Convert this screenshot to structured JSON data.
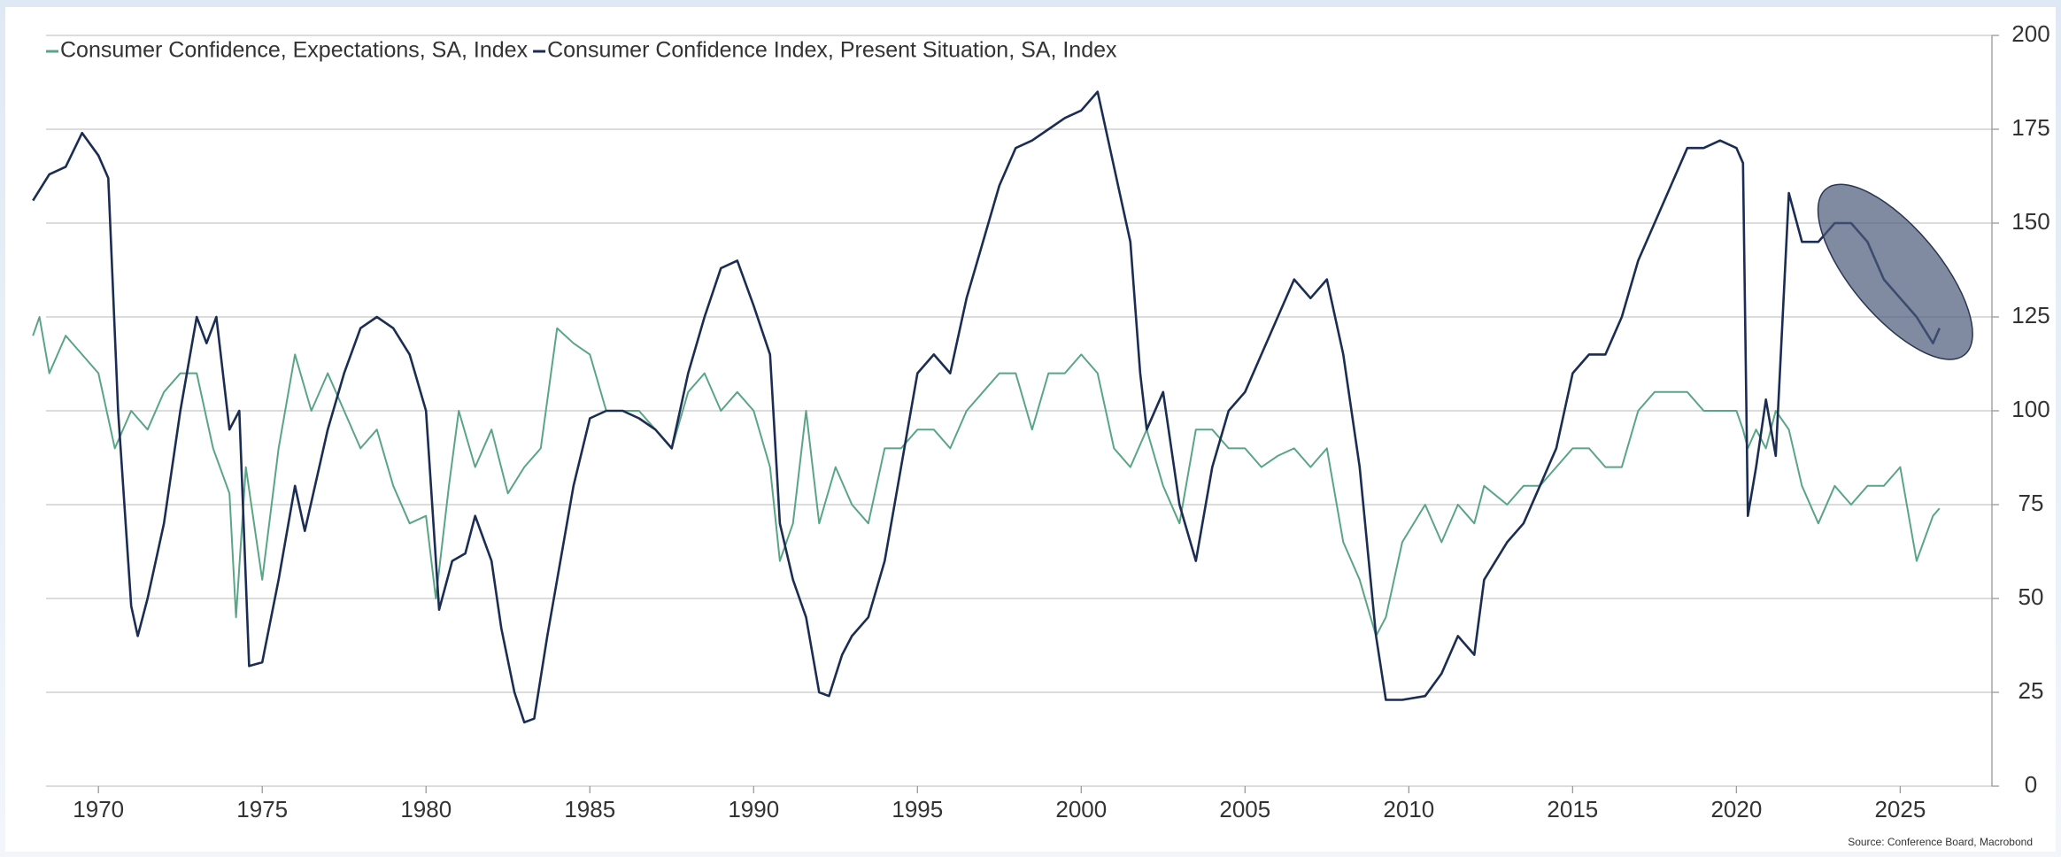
{
  "chart_data": {
    "type": "line",
    "legend": "top-left",
    "grid": true,
    "xlim": [
      1968.4,
      2027.8
    ],
    "xticks": [
      1970,
      1975,
      1980,
      1985,
      1990,
      1995,
      2000,
      2005,
      2010,
      2015,
      2020,
      2025
    ],
    "ylim": [
      0,
      200
    ],
    "yticks": [
      0,
      25,
      50,
      75,
      100,
      125,
      150,
      175,
      200
    ],
    "source": "Source: Conference Board, Macrobond",
    "series": [
      {
        "name": "Consumer Confidence, Expectations, SA, Index",
        "color": "#5aa586",
        "x": [
          1968.0,
          1968.2,
          1968.5,
          1969.0,
          1969.5,
          1970.0,
          1970.5,
          1971.0,
          1971.5,
          1972.0,
          1972.5,
          1973.0,
          1973.5,
          1974.0,
          1974.2,
          1974.5,
          1975.0,
          1975.5,
          1976.0,
          1976.5,
          1977.0,
          1977.5,
          1978.0,
          1978.5,
          1979.0,
          1979.5,
          1980.0,
          1980.3,
          1980.7,
          1981.0,
          1981.5,
          1982.0,
          1982.5,
          1983.0,
          1983.5,
          1984.0,
          1984.5,
          1985.0,
          1985.5,
          1986.0,
          1986.5,
          1987.0,
          1987.5,
          1988.0,
          1988.5,
          1989.0,
          1989.5,
          1990.0,
          1990.5,
          1990.8,
          1991.2,
          1991.6,
          1992.0,
          1992.5,
          1993.0,
          1993.5,
          1994.0,
          1994.5,
          1995.0,
          1995.5,
          1996.0,
          1996.5,
          1997.0,
          1997.5,
          1998.0,
          1998.5,
          1999.0,
          1999.5,
          2000.0,
          2000.5,
          2001.0,
          2001.5,
          2002.0,
          2002.5,
          2003.0,
          2003.5,
          2004.0,
          2004.5,
          2005.0,
          2005.5,
          2006.0,
          2006.5,
          2007.0,
          2007.5,
          2008.0,
          2008.5,
          2009.0,
          2009.3,
          2009.8,
          2010.5,
          2011.0,
          2011.5,
          2012.0,
          2012.3,
          2013.0,
          2013.5,
          2014.0,
          2014.5,
          2015.0,
          2015.5,
          2016.0,
          2016.5,
          2017.0,
          2017.5,
          2018.0,
          2018.5,
          2019.0,
          2019.5,
          2020.0,
          2020.2,
          2020.35,
          2020.6,
          2020.9,
          2021.2,
          2021.6,
          2022.0,
          2022.5,
          2023.0,
          2023.5,
          2024.0,
          2024.5,
          2025.0,
          2025.5,
          2026.0,
          2026.2
        ],
        "values": [
          120,
          125,
          110,
          120,
          115,
          110,
          90,
          100,
          95,
          105,
          110,
          110,
          90,
          78,
          45,
          85,
          55,
          90,
          115,
          100,
          110,
          100,
          90,
          95,
          80,
          70,
          72,
          50,
          80,
          100,
          85,
          95,
          78,
          85,
          90,
          122,
          118,
          115,
          100,
          100,
          100,
          95,
          90,
          105,
          110,
          100,
          105,
          100,
          85,
          60,
          70,
          100,
          70,
          85,
          75,
          70,
          90,
          90,
          95,
          95,
          90,
          100,
          105,
          110,
          110,
          95,
          110,
          110,
          115,
          110,
          90,
          85,
          95,
          80,
          70,
          95,
          95,
          90,
          90,
          85,
          88,
          90,
          85,
          90,
          65,
          55,
          40,
          45,
          65,
          75,
          65,
          75,
          70,
          80,
          75,
          80,
          80,
          85,
          90,
          90,
          85,
          85,
          100,
          105,
          105,
          105,
          100,
          100,
          100,
          95,
          90,
          95,
          90,
          100,
          95,
          80,
          70,
          80,
          75,
          80,
          80,
          85,
          60,
          72,
          74
        ]
      },
      {
        "name": "Consumer Confidence Index, Present Situation, SA, Index",
        "color": "#1b2d52",
        "x": [
          1968.0,
          1968.5,
          1969.0,
          1969.5,
          1970.0,
          1970.3,
          1970.6,
          1971.0,
          1971.2,
          1971.5,
          1972.0,
          1972.5,
          1973.0,
          1973.3,
          1973.6,
          1974.0,
          1974.3,
          1974.6,
          1975.0,
          1975.5,
          1976.0,
          1976.3,
          1977.0,
          1977.5,
          1978.0,
          1978.5,
          1979.0,
          1979.5,
          1980.0,
          1980.4,
          1980.8,
          1981.2,
          1981.5,
          1982.0,
          1982.3,
          1982.7,
          1983.0,
          1983.3,
          1983.7,
          1984.0,
          1984.5,
          1985.0,
          1985.5,
          1986.0,
          1986.5,
          1987.0,
          1987.5,
          1988.0,
          1988.5,
          1989.0,
          1989.5,
          1990.0,
          1990.5,
          1990.8,
          1991.2,
          1991.6,
          1992.0,
          1992.3,
          1992.7,
          1993.0,
          1993.5,
          1994.0,
          1994.5,
          1995.0,
          1995.5,
          1996.0,
          1996.5,
          1997.0,
          1997.5,
          1998.0,
          1998.5,
          1999.0,
          1999.5,
          2000.0,
          2000.5,
          2001.0,
          2001.5,
          2001.8,
          2002.0,
          2002.5,
          2003.0,
          2003.5,
          2004.0,
          2004.5,
          2005.0,
          2005.5,
          2006.0,
          2006.5,
          2007.0,
          2007.5,
          2008.0,
          2008.5,
          2009.0,
          2009.3,
          2009.8,
          2010.5,
          2011.0,
          2011.5,
          2012.0,
          2012.3,
          2013.0,
          2013.5,
          2014.0,
          2014.5,
          2015.0,
          2015.5,
          2016.0,
          2016.5,
          2017.0,
          2017.5,
          2018.0,
          2018.5,
          2019.0,
          2019.5,
          2020.0,
          2020.2,
          2020.35,
          2020.6,
          2020.9,
          2021.2,
          2021.6,
          2022.0,
          2022.5,
          2023.0,
          2023.5,
          2024.0,
          2024.5,
          2025.0,
          2025.5,
          2026.0,
          2026.2
        ],
        "values": [
          156,
          163,
          165,
          174,
          168,
          162,
          100,
          48,
          40,
          50,
          70,
          100,
          125,
          118,
          125,
          95,
          100,
          32,
          33,
          55,
          80,
          68,
          95,
          110,
          122,
          125,
          122,
          115,
          100,
          47,
          60,
          62,
          72,
          60,
          42,
          25,
          17,
          18,
          40,
          55,
          80,
          98,
          100,
          100,
          98,
          95,
          90,
          110,
          125,
          138,
          140,
          128,
          115,
          70,
          55,
          45,
          25,
          24,
          35,
          40,
          45,
          60,
          85,
          110,
          115,
          110,
          130,
          145,
          160,
          170,
          172,
          175,
          178,
          180,
          185,
          165,
          145,
          110,
          95,
          105,
          75,
          60,
          85,
          100,
          105,
          115,
          125,
          135,
          130,
          135,
          115,
          85,
          40,
          23,
          23,
          24,
          30,
          40,
          35,
          55,
          65,
          70,
          80,
          90,
          110,
          115,
          115,
          125,
          140,
          150,
          160,
          170,
          170,
          172,
          170,
          166,
          72,
          85,
          103,
          88,
          158,
          145,
          145,
          150,
          150,
          145,
          135,
          130,
          125,
          118,
          122
        ]
      }
    ]
  }
}
